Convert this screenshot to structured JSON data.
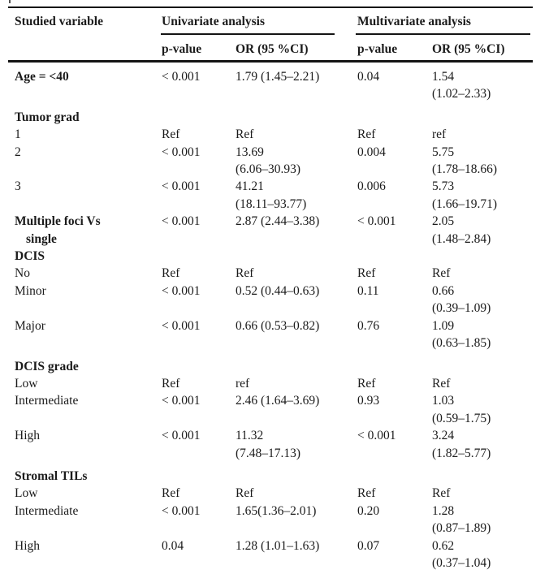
{
  "table": {
    "col1_header": "Studied variable",
    "groups": {
      "univariate": "Univariate analysis",
      "multivariate": "Multivariate analysis"
    },
    "sub_headers": {
      "uni_p": "p-value",
      "uni_or": "OR (95 %CI)",
      "multi_p": "p-value",
      "multi_or": "OR (95 %CI)"
    },
    "rows": [
      {
        "label": "Age = <40",
        "bold": true,
        "section": false,
        "cells": [
          "< 0.001",
          "1.79 (1.45–2.21)",
          "0.04",
          "1.54\n(1.02–2.33)"
        ]
      },
      {
        "label": "Tumor grad",
        "bold": true,
        "section": true,
        "cells": [
          "",
          "",
          "",
          ""
        ]
      },
      {
        "label": "1",
        "bold": false,
        "section": false,
        "cells": [
          "Ref",
          "Ref",
          "Ref",
          "ref"
        ]
      },
      {
        "label": "2",
        "bold": false,
        "section": false,
        "cells": [
          "< 0.001",
          "13.69\n(6.06–30.93)",
          "0.004",
          "5.75\n(1.78–18.66)"
        ]
      },
      {
        "label": "3",
        "bold": false,
        "section": false,
        "cells": [
          "< 0.001",
          "41.21\n(18.11–93.77)",
          "0.006",
          "5.73\n(1.66–19.71)"
        ]
      },
      {
        "label": "Multiple foci Vs\nsingle",
        "bold": true,
        "section": false,
        "cells": [
          "< 0.001",
          "2.87 (2.44–3.38)",
          "< 0.001",
          "2.05\n(1.48–2.84)"
        ]
      },
      {
        "label": "DCIS",
        "bold": true,
        "section": false,
        "cells": [
          "",
          "",
          "",
          ""
        ]
      },
      {
        "label": "No",
        "bold": false,
        "section": false,
        "cells": [
          "Ref",
          "Ref",
          "Ref",
          "Ref"
        ]
      },
      {
        "label": "Minor",
        "bold": false,
        "section": false,
        "cells": [
          "< 0.001",
          "0.52 (0.44–0.63)",
          "0.11",
          "0.66\n(0.39–1.09)"
        ]
      },
      {
        "label": "Major",
        "bold": false,
        "section": false,
        "cells": [
          "< 0.001",
          "0.66 (0.53–0.82)",
          "0.76",
          "1.09\n(0.63–1.85)"
        ]
      },
      {
        "label": "DCIS grade",
        "bold": true,
        "section": true,
        "cells": [
          "",
          "",
          "",
          ""
        ]
      },
      {
        "label": "Low",
        "bold": false,
        "section": false,
        "cells": [
          "Ref",
          "ref",
          "Ref",
          "Ref"
        ]
      },
      {
        "label": "Intermediate",
        "bold": false,
        "section": false,
        "cells": [
          "< 0.001",
          "2.46 (1.64–3.69)",
          "0.93",
          "1.03\n(0.59–1.75)"
        ]
      },
      {
        "label": "High",
        "bold": false,
        "section": false,
        "cells": [
          "< 0.001",
          "11.32\n(7.48–17.13)",
          "< 0.001",
          "3.24\n(1.82–5.77)"
        ]
      },
      {
        "label": "Stromal TILs",
        "bold": true,
        "section": true,
        "cells": [
          "",
          "",
          "",
          ""
        ]
      },
      {
        "label": "Low",
        "bold": false,
        "section": false,
        "cells": [
          "Ref",
          "Ref",
          "Ref",
          "Ref"
        ]
      },
      {
        "label": "Intermediate",
        "bold": false,
        "section": false,
        "cells": [
          "< 0.001",
          "1.65(1.36–2.01)",
          "0.20",
          "1.28\n(0.87–1.89)"
        ]
      },
      {
        "label": "High",
        "bold": false,
        "section": false,
        "cells": [
          "0.04",
          "1.28 (1.01–1.63)",
          "0.07",
          "0.62\n(0.37–1.04)"
        ]
      }
    ]
  }
}
